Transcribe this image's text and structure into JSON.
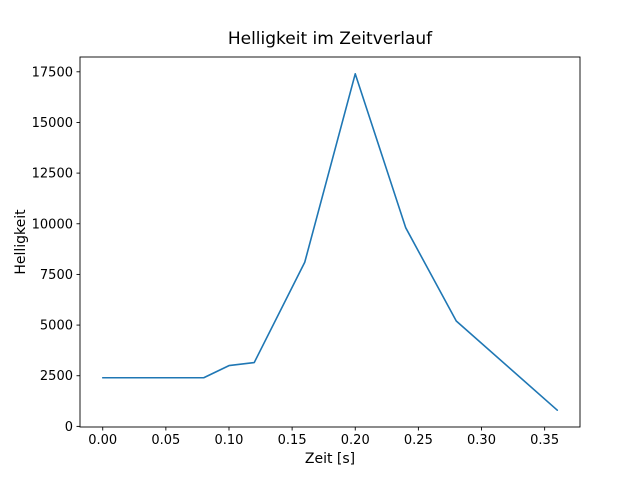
{
  "figure": {
    "title": "Helligkeit im Zeitverlauf",
    "xlabel": "Zeit [s]",
    "ylabel": "Helligkeit"
  },
  "chart_data": {
    "type": "line",
    "title": "Helligkeit im Zeitverlauf",
    "xlabel": "Zeit [s]",
    "ylabel": "Helligkeit",
    "x": [
      0.0,
      0.04,
      0.08,
      0.1,
      0.12,
      0.16,
      0.2,
      0.24,
      0.28,
      0.36
    ],
    "y": [
      2400,
      2400,
      2400,
      3000,
      3150,
      8100,
      17400,
      9800,
      5200,
      800
    ],
    "xlim": [
      -0.018,
      0.378
    ],
    "ylim": [
      -30,
      18230
    ],
    "xticks": [
      0.0,
      0.05,
      0.1,
      0.15,
      0.2,
      0.25,
      0.3,
      0.35
    ],
    "xtick_labels": [
      "0.00",
      "0.05",
      "0.10",
      "0.15",
      "0.20",
      "0.25",
      "0.30",
      "0.35"
    ],
    "yticks": [
      0,
      2500,
      5000,
      7500,
      10000,
      12500,
      15000,
      17500
    ],
    "ytick_labels": [
      "0",
      "2500",
      "5000",
      "7500",
      "10000",
      "12500",
      "15000",
      "17500"
    ],
    "line_color": "#1f77b4",
    "axis_color": "#000000",
    "background_color": "#ffffff",
    "grid": false,
    "legend": "none"
  }
}
